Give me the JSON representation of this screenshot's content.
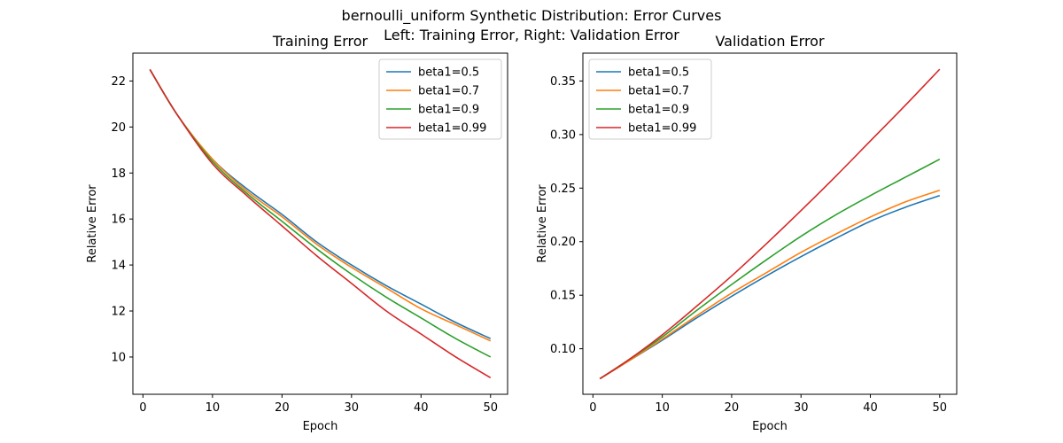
{
  "figure": {
    "suptitle_line1": "bernoulli_uniform Synthetic Distribution: Error Curves",
    "suptitle_line2": "Left: Training Error, Right: Validation Error"
  },
  "colors": {
    "beta1=0.5": "#1f77b4",
    "beta1=0.7": "#ff7f0e",
    "beta1=0.9": "#2ca02c",
    "beta1=0.99": "#d62728"
  },
  "chart_data": [
    {
      "type": "line",
      "title": "Training Error",
      "xlabel": "Epoch",
      "ylabel": "Relative Error",
      "xlim": [
        -1.45,
        52.45
      ],
      "ylim": [
        8.38,
        23.21
      ],
      "xticks": [
        0,
        10,
        20,
        30,
        40,
        50
      ],
      "yticks": [
        10,
        12,
        14,
        16,
        18,
        20,
        22
      ],
      "grid": false,
      "legend_position": "top-right",
      "x": [
        1,
        5,
        10,
        15,
        20,
        25,
        30,
        35,
        40,
        45,
        50
      ],
      "series": [
        {
          "name": "beta1=0.5",
          "values": [
            22.5,
            20.5,
            18.6,
            17.3,
            16.2,
            15.0,
            14.0,
            13.1,
            12.3,
            11.5,
            10.8
          ]
        },
        {
          "name": "beta1=0.7",
          "values": [
            22.5,
            20.5,
            18.6,
            17.2,
            16.1,
            14.9,
            13.9,
            13.0,
            12.1,
            11.4,
            10.7
          ]
        },
        {
          "name": "beta1=0.9",
          "values": [
            22.5,
            20.5,
            18.5,
            17.1,
            15.9,
            14.7,
            13.6,
            12.6,
            11.7,
            10.8,
            10.0
          ]
        },
        {
          "name": "beta1=0.99",
          "values": [
            22.5,
            20.5,
            18.4,
            17.0,
            15.7,
            14.4,
            13.2,
            12.0,
            11.0,
            10.0,
            9.1
          ]
        }
      ]
    },
    {
      "type": "line",
      "title": "Validation Error",
      "xlabel": "Epoch",
      "ylabel": "Relative Error",
      "xlim": [
        -1.45,
        52.45
      ],
      "ylim": [
        0.0575,
        0.376
      ],
      "xticks": [
        0,
        10,
        20,
        30,
        40,
        50
      ],
      "yticks": [
        0.1,
        0.15,
        0.2,
        0.25,
        0.3,
        0.35
      ],
      "ytick_labels": [
        "0.10",
        "0.15",
        "0.20",
        "0.25",
        "0.30",
        "0.35"
      ],
      "grid": false,
      "legend_position": "top-left",
      "x": [
        1,
        5,
        10,
        15,
        20,
        25,
        30,
        35,
        40,
        45,
        50
      ],
      "series": [
        {
          "name": "beta1=0.5",
          "values": [
            0.072,
            0.088,
            0.108,
            0.129,
            0.149,
            0.168,
            0.186,
            0.203,
            0.219,
            0.232,
            0.243
          ]
        },
        {
          "name": "beta1=0.7",
          "values": [
            0.072,
            0.088,
            0.109,
            0.131,
            0.152,
            0.171,
            0.19,
            0.207,
            0.223,
            0.237,
            0.248
          ]
        },
        {
          "name": "beta1=0.9",
          "values": [
            0.072,
            0.089,
            0.111,
            0.136,
            0.16,
            0.183,
            0.205,
            0.225,
            0.243,
            0.26,
            0.277
          ]
        },
        {
          "name": "beta1=0.99",
          "values": [
            0.072,
            0.089,
            0.113,
            0.14,
            0.168,
            0.198,
            0.229,
            0.261,
            0.294,
            0.327,
            0.361
          ]
        }
      ]
    }
  ]
}
